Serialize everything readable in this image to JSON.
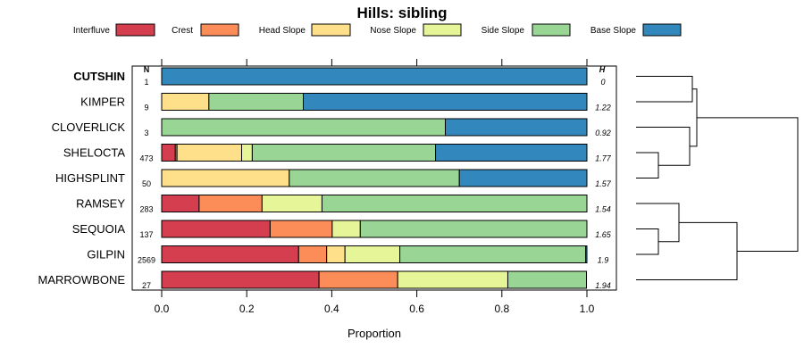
{
  "chart_data": {
    "type": "bar",
    "stacked": true,
    "orientation": "horizontal",
    "title": "Hills: sibling",
    "xlabel": "Proportion",
    "ylabel": "",
    "xlim": [
      0,
      1
    ],
    "xticks": [
      0.0,
      0.2,
      0.4,
      0.6,
      0.8,
      1.0
    ],
    "xtick_labels": [
      "0.0",
      "0.2",
      "0.4",
      "0.6",
      "0.8",
      "1.0"
    ],
    "n_header": "N",
    "h_header": "H",
    "series": [
      {
        "name": "Interfluve",
        "color": "#d53e4f"
      },
      {
        "name": "Crest",
        "color": "#fc8d59"
      },
      {
        "name": "Head Slope",
        "color": "#fee08b"
      },
      {
        "name": "Nose Slope",
        "color": "#e6f598"
      },
      {
        "name": "Side Slope",
        "color": "#99d594"
      },
      {
        "name": "Base Slope",
        "color": "#3288bd"
      }
    ],
    "categories": [
      {
        "name": "CUTSHIN",
        "bold": true,
        "n": "1",
        "h": "0",
        "values": [
          0,
          0,
          0,
          0,
          0,
          1.0
        ]
      },
      {
        "name": "KIMPER",
        "bold": false,
        "n": "9",
        "h": "1.22",
        "values": [
          0,
          0,
          0.111,
          0,
          0.222,
          0.667
        ]
      },
      {
        "name": "CLOVERLICK",
        "bold": false,
        "n": "3",
        "h": "0.92",
        "values": [
          0,
          0,
          0,
          0,
          0.667,
          0.333
        ]
      },
      {
        "name": "SHELOCTA",
        "bold": false,
        "n": "473",
        "h": "1.77",
        "values": [
          0.032,
          0.004,
          0.152,
          0.025,
          0.431,
          0.356
        ]
      },
      {
        "name": "HIGHSPLINT",
        "bold": false,
        "n": "50",
        "h": "1.57",
        "values": [
          0,
          0,
          0.3,
          0,
          0.4,
          0.3
        ]
      },
      {
        "name": "RAMSEY",
        "bold": false,
        "n": "283",
        "h": "1.54",
        "values": [
          0.088,
          0.148,
          0,
          0.141,
          0.623,
          0
        ]
      },
      {
        "name": "SEQUOIA",
        "bold": false,
        "n": "137",
        "h": "1.65",
        "values": [
          0.255,
          0.146,
          0,
          0.066,
          0.533,
          0
        ]
      },
      {
        "name": "GILPIN",
        "bold": false,
        "n": "2569",
        "h": "1.9",
        "values": [
          0.322,
          0.066,
          0.043,
          0.129,
          0.437,
          0.003
        ]
      },
      {
        "name": "MARROWBONE",
        "bold": false,
        "n": "27",
        "h": "1.94",
        "values": [
          0.37,
          0.185,
          0,
          0.259,
          0.185,
          0
        ]
      }
    ],
    "dendrogram": "hierarchical clustering of categories (right side)"
  }
}
